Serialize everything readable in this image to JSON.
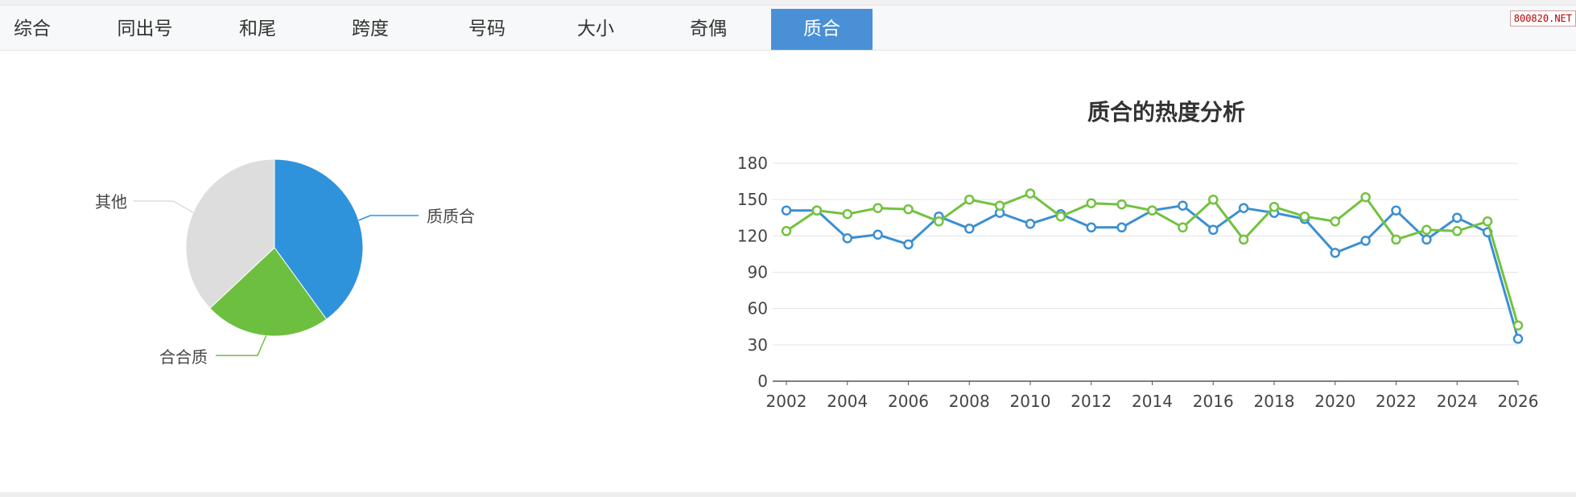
{
  "tabs": [
    "综合",
    "同出号",
    "和尾",
    "跨度",
    "号码",
    "大小",
    "奇偶",
    "质合"
  ],
  "active_tab": 7,
  "watermark": "800820.NET",
  "colors": {
    "blue": "#3b8fd1",
    "green": "#72c23f",
    "gray": "#dcdcdc",
    "active_tab": "#4a90d6"
  },
  "chart_data": [
    {
      "type": "pie",
      "labels": [
        "质质合",
        "合合质",
        "其他"
      ],
      "values": [
        40,
        23,
        37
      ],
      "colors": [
        "#2e93db",
        "#6dbf3f",
        "#dddddd"
      ]
    },
    {
      "type": "line",
      "title": "质合的热度分析",
      "x": [
        2002,
        2003,
        2004,
        2005,
        2006,
        2007,
        2008,
        2009,
        2010,
        2011,
        2012,
        2013,
        2014,
        2015,
        2016,
        2017,
        2018,
        2019,
        2020,
        2021,
        2022,
        2023,
        2024,
        2025,
        2026
      ],
      "x_ticks": [
        "2002",
        "2004",
        "2006",
        "2008",
        "2010",
        "2012",
        "2014",
        "2016",
        "2018",
        "2020",
        "2022",
        "2024",
        "2026"
      ],
      "y_ticks": [
        "0",
        "30",
        "60",
        "90",
        "120",
        "150",
        "180"
      ],
      "ylim": [
        0,
        180
      ],
      "grid": true,
      "series": [
        {
          "color": "#3b8fd1",
          "values": [
            141,
            141,
            118,
            121,
            113,
            136,
            126,
            139,
            130,
            138,
            127,
            127,
            141,
            145,
            125,
            143,
            139,
            134,
            106,
            116,
            141,
            117,
            135,
            123,
            35
          ]
        },
        {
          "color": "#72c23f",
          "values": [
            124,
            141,
            138,
            143,
            142,
            132,
            150,
            145,
            155,
            136,
            147,
            146,
            141,
            127,
            150,
            117,
            144,
            136,
            132,
            152,
            117,
            125,
            124,
            132,
            46
          ]
        }
      ]
    }
  ]
}
